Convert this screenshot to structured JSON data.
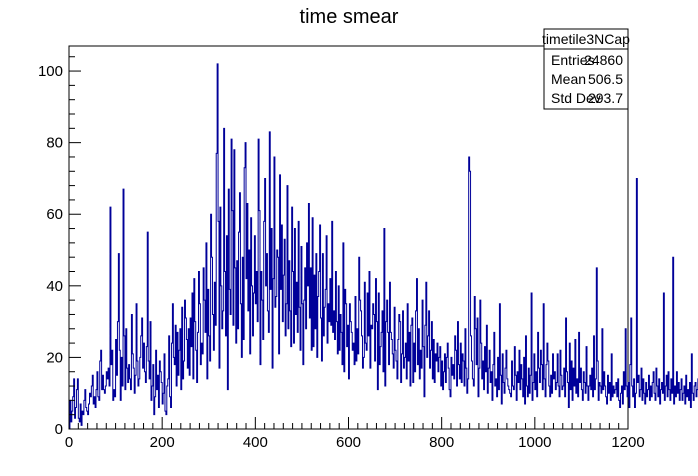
{
  "chart_data": {
    "type": "histogram",
    "title": "time smear",
    "xlabel": "",
    "ylabel": "",
    "xlim": [
      0,
      1200
    ],
    "ylim": [
      0,
      107
    ],
    "x_ticks": [
      0,
      200,
      400,
      600,
      800,
      1000,
      1200
    ],
    "y_ticks": [
      0,
      20,
      40,
      60,
      80,
      100
    ],
    "grid": false,
    "line_color": "#000099",
    "stats_box": {
      "name": "timetile3NCap",
      "rows": [
        {
          "label": "Entries",
          "value": "24860"
        },
        {
          "label": "Mean",
          "value": "506.5"
        },
        {
          "label": "Std Dev",
          "value": "293.7"
        }
      ]
    },
    "bin_width": 2,
    "values": [
      0,
      8,
      2,
      5,
      9,
      14,
      3,
      6,
      11,
      14,
      3,
      2,
      7,
      1,
      5,
      4,
      8,
      11,
      6,
      5,
      4,
      7,
      10,
      9,
      12,
      15,
      7,
      9,
      6,
      11,
      16,
      9,
      8,
      19,
      22,
      11,
      15,
      11,
      10,
      12,
      16,
      14,
      17,
      12,
      62,
      18,
      22,
      8,
      11,
      9,
      25,
      15,
      30,
      49,
      22,
      8,
      20,
      12,
      67,
      26,
      11,
      28,
      17,
      13,
      18,
      14,
      11,
      32,
      21,
      17,
      10,
      15,
      35,
      19,
      12,
      14,
      20,
      26,
      31,
      17,
      24,
      16,
      13,
      23,
      55,
      19,
      14,
      30,
      8,
      12,
      18,
      4,
      9,
      22,
      11,
      15,
      6,
      19,
      16,
      13,
      7,
      10,
      21,
      5,
      4,
      12,
      14,
      26,
      9,
      6,
      24,
      35,
      20,
      18,
      29,
      12,
      27,
      15,
      22,
      28,
      11,
      34,
      14,
      19,
      36,
      31,
      25,
      17,
      28,
      15,
      31,
      23,
      38,
      14,
      42,
      30,
      22,
      13,
      27,
      44,
      35,
      18,
      24,
      21,
      45,
      36,
      27,
      52,
      14,
      39,
      26,
      19,
      60,
      48,
      32,
      22,
      41,
      29,
      77,
      102,
      58,
      17,
      62,
      40,
      28,
      33,
      84,
      44,
      26,
      54,
      11,
      67,
      39,
      32,
      81,
      61,
      29,
      78,
      45,
      24,
      47,
      28,
      55,
      66,
      35,
      20,
      48,
      25,
      73,
      80,
      42,
      63,
      33,
      50,
      21,
      59,
      40,
      26,
      38,
      54,
      35,
      44,
      30,
      81,
      61,
      18,
      44,
      36,
      25,
      58,
      70,
      40,
      49,
      33,
      27,
      83,
      39,
      56,
      17,
      42,
      76,
      34,
      37,
      50,
      48,
      21,
      71,
      39,
      57,
      30,
      43,
      53,
      26,
      35,
      68,
      28,
      47,
      33,
      23,
      62,
      44,
      24,
      56,
      32,
      41,
      27,
      58,
      34,
      22,
      51,
      35,
      18,
      36,
      45,
      28,
      52,
      40,
      63,
      31,
      45,
      22,
      59,
      23,
      43,
      28,
      49,
      20,
      37,
      44,
      57,
      31,
      19,
      49,
      26,
      34,
      39,
      54,
      24,
      35,
      30,
      42,
      29,
      58,
      27,
      33,
      25,
      44,
      30,
      21,
      40,
      22,
      32,
      27,
      18,
      52,
      16,
      39,
      35,
      23,
      29,
      14,
      35,
      30,
      27,
      22,
      24,
      18,
      37,
      19,
      28,
      21,
      48,
      36,
      33,
      26,
      17,
      20,
      41,
      24,
      22,
      38,
      26,
      44,
      17,
      29,
      28,
      35,
      32,
      19,
      42,
      30,
      11,
      38,
      18,
      23,
      27,
      33,
      16,
      56,
      12,
      30,
      36,
      27,
      18,
      41,
      27,
      25,
      21,
      17,
      34,
      22,
      19,
      14,
      25,
      32,
      30,
      13,
      21,
      33,
      17,
      20,
      24,
      14,
      35,
      19,
      27,
      12,
      29,
      31,
      13,
      24,
      16,
      33,
      42,
      18,
      28,
      14,
      22,
      17,
      36,
      23,
      9,
      29,
      41,
      20,
      26,
      33,
      17,
      22,
      30,
      14,
      25,
      13,
      21,
      19,
      24,
      16,
      20,
      23,
      12,
      19,
      11,
      16,
      21,
      13,
      20,
      24,
      17,
      11,
      9,
      20,
      15,
      18,
      14,
      26,
      22,
      12,
      30,
      18,
      14,
      24,
      13,
      21,
      19,
      12,
      28,
      17,
      10,
      14,
      76,
      72,
      26,
      19,
      14,
      12,
      37,
      28,
      18,
      31,
      9,
      17,
      36,
      24,
      14,
      19,
      11,
      23,
      16,
      29,
      10,
      17,
      22,
      13,
      16,
      8,
      18,
      27,
      12,
      14,
      9,
      20,
      11,
      35,
      15,
      7,
      21,
      13,
      10,
      17,
      22,
      14,
      12,
      11,
      10,
      9,
      19,
      12,
      11,
      23,
      15,
      8,
      16,
      13,
      22,
      11,
      18,
      14,
      9,
      20,
      7,
      26,
      12,
      9,
      17,
      10,
      15,
      38,
      8,
      13,
      21,
      11,
      16,
      9,
      27,
      17,
      13,
      22,
      18,
      11,
      35,
      14,
      9,
      18,
      24,
      19,
      12,
      9,
      15,
      10,
      21,
      14,
      16,
      11,
      13,
      21,
      12,
      9,
      22,
      15,
      11,
      12,
      17,
      9,
      31,
      16,
      13,
      6,
      24,
      11,
      19,
      8,
      17,
      12,
      25,
      10,
      14,
      9,
      27,
      13,
      17,
      11,
      8,
      16,
      13,
      10,
      23,
      12,
      8,
      12,
      15,
      11,
      17,
      9,
      26,
      11,
      14,
      45,
      19,
      8,
      13,
      12,
      10,
      28,
      11,
      16,
      12,
      9,
      7,
      15,
      10,
      13,
      8,
      21,
      9,
      12,
      10,
      11,
      13,
      9,
      14,
      8,
      6,
      10,
      12,
      7,
      16,
      11,
      28,
      12,
      9,
      13,
      6,
      18,
      31,
      12,
      9,
      14,
      6,
      10,
      70,
      13,
      15,
      9,
      11,
      17,
      8,
      14,
      10,
      7,
      13,
      9,
      11,
      15,
      8,
      12,
      9,
      13,
      16,
      10,
      8,
      17,
      12,
      9,
      14,
      7,
      11,
      13,
      10,
      38,
      8,
      12,
      15,
      9,
      16,
      11,
      8,
      14,
      10,
      48,
      7,
      12,
      9,
      16,
      10,
      13,
      8,
      11,
      14,
      8,
      10,
      12,
      7,
      15,
      9,
      11,
      8,
      13,
      6,
      21,
      10,
      8,
      12,
      13,
      9,
      11,
      14,
      10,
      8,
      15,
      9,
      12,
      7,
      31,
      10,
      13,
      8,
      11,
      9,
      14,
      8,
      12,
      10,
      13,
      9
    ]
  }
}
